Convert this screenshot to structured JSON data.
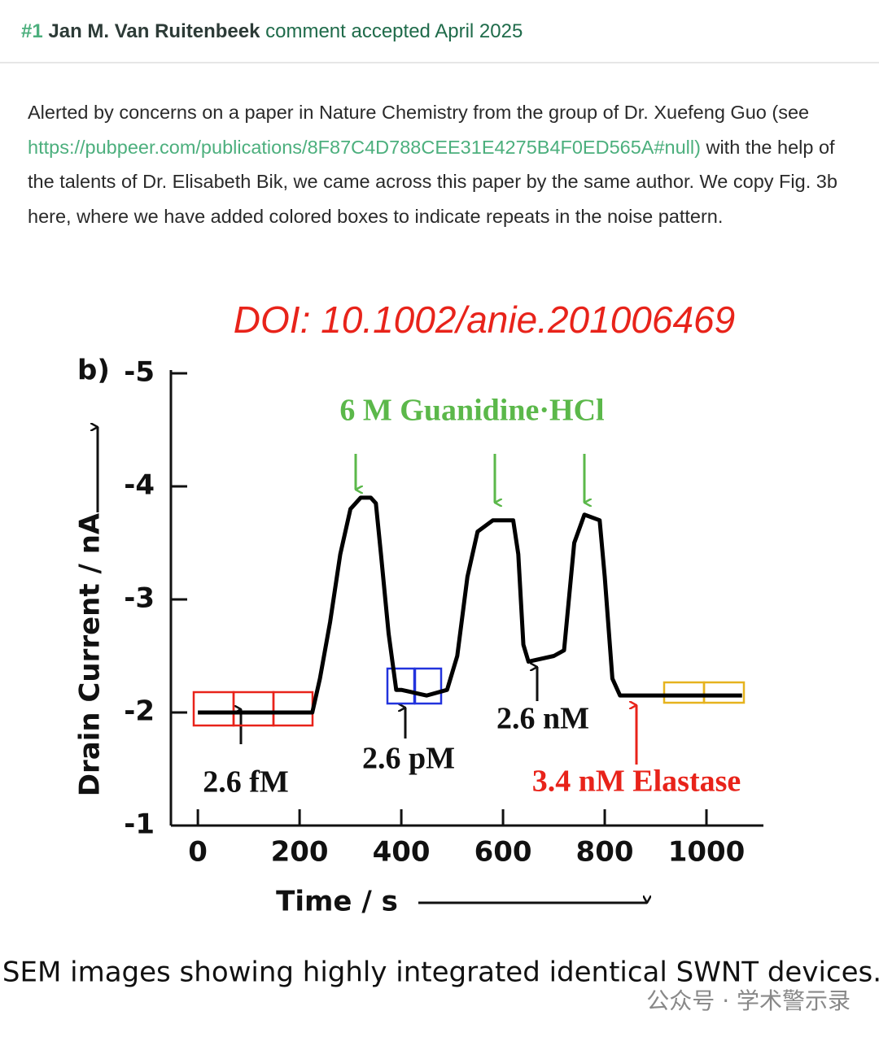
{
  "header": {
    "number": "#1",
    "author": "Jan M. Van Ruitenbeek",
    "status": "comment accepted April 2025"
  },
  "comment": {
    "text_before_link": "Alerted by concerns on a paper in Nature Chemistry from the group of Dr. Xuefeng Guo (see ",
    "link": "https://pubpeer.com/publications/8F87C4D788CEE31E4275B4F0ED565A#null)",
    "text_after_link": " with the help of the talents of Dr. Elisabeth Bik, we came across this paper by the same author. We copy Fig. 3b here, where we have added colored boxes to indicate repeats in the noise pattern."
  },
  "figure": {
    "doi": "DOI: 10.1002/anie.201006469",
    "panel_label": "b)",
    "caption": "SEM images showing highly integrated identical SWNT devices.",
    "watermark": "公众号 · 学术警示录"
  },
  "chart_data": {
    "type": "line",
    "xlabel": "Time / s",
    "ylabel": "Drain Current / nA",
    "x": [
      0,
      100,
      200,
      225,
      240,
      260,
      280,
      300,
      320,
      340,
      350,
      360,
      375,
      390,
      400,
      450,
      490,
      510,
      530,
      550,
      580,
      620,
      630,
      640,
      650,
      700,
      720,
      740,
      760,
      790,
      800,
      815,
      830,
      870,
      900,
      1000,
      1070
    ],
    "series": [
      {
        "name": "Drain current",
        "color": "#000000",
        "values": [
          -2.0,
          -2.0,
          -2.0,
          -2.0,
          -2.3,
          -2.8,
          -3.4,
          -3.8,
          -3.9,
          -3.9,
          -3.85,
          -3.4,
          -2.7,
          -2.2,
          -2.2,
          -2.15,
          -2.2,
          -2.5,
          -3.2,
          -3.6,
          -3.7,
          -3.7,
          -3.4,
          -2.6,
          -2.45,
          -2.5,
          -2.55,
          -3.5,
          -3.75,
          -3.7,
          -3.2,
          -2.3,
          -2.15,
          -2.15,
          -2.15,
          -2.15,
          -2.15
        ]
      }
    ],
    "xlim": [
      -53,
      1112
    ],
    "ylim": [
      -1,
      -5
    ],
    "xticks": [
      0,
      200,
      400,
      600,
      800,
      1000
    ],
    "yticks": [
      -5,
      -4,
      -3,
      -2,
      -1
    ],
    "annotations": {
      "treatment": "6 M Guanidine·HCl",
      "fM": "2.6 fM",
      "pM": "2.6 pM",
      "nM": "2.6 nM",
      "elastase": "3.4 nM Elastase"
    }
  }
}
